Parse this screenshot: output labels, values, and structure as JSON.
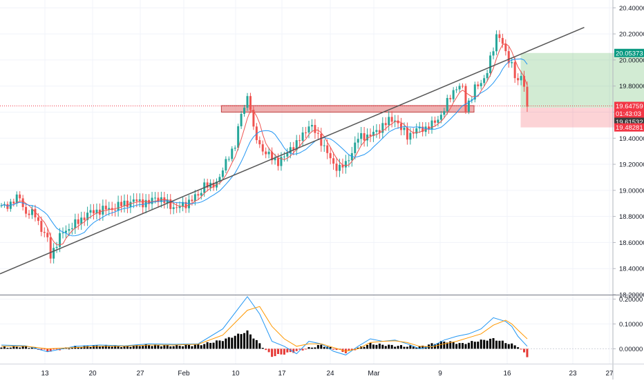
{
  "chart_data": [
    {
      "type": "candlestick",
      "xaxis_ticks": [
        "13",
        "20",
        "27",
        "Feb",
        "10",
        "17",
        "24",
        "Mar",
        "9",
        "16",
        "23",
        "27"
      ],
      "yaxis_ticks": [
        "20.40000",
        "20.20000",
        "20.00000",
        "19.80000",
        "19.60000",
        "19.40000",
        "19.20000",
        "19.00000",
        "18.80000",
        "18.60000",
        "18.40000",
        "18.20000"
      ],
      "ylim": [
        18.2,
        20.46
      ],
      "grid": true,
      "colors": {
        "up": "#26a69a",
        "down": "#ef5350",
        "fast_ma": "#ef5350",
        "slow_ma": "#2196f3"
      },
      "price_labels": [
        {
          "text": "20.05373",
          "value": 20.05373,
          "color": "#089981",
          "role": "take-profit"
        },
        {
          "text": "19.64759",
          "value": 19.64759,
          "color": "#f23645",
          "role": "last-price"
        },
        {
          "text": "01:43:03",
          "value": 19.61,
          "color": "#f23645",
          "role": "bar-countdown"
        },
        {
          "text": "19.61532",
          "value": 19.61532,
          "color": "#3d3d3d",
          "role": "current"
        },
        {
          "text": "19.48281",
          "value": 19.48281,
          "color": "#f23645",
          "role": "stop-loss"
        }
      ],
      "price_anchors": [
        [
          0,
          18.87
        ],
        [
          3,
          18.9
        ],
        [
          6,
          18.95
        ],
        [
          8,
          18.82
        ],
        [
          11,
          18.82
        ],
        [
          13,
          18.7
        ],
        [
          15,
          18.62
        ],
        [
          16,
          18.5
        ],
        [
          17,
          18.55
        ],
        [
          20,
          18.68
        ],
        [
          24,
          18.74
        ],
        [
          28,
          18.82
        ],
        [
          32,
          18.85
        ],
        [
          36,
          18.86
        ],
        [
          40,
          18.9
        ],
        [
          44,
          18.92
        ],
        [
          48,
          18.9
        ],
        [
          50,
          18.95
        ],
        [
          54,
          18.9
        ],
        [
          57,
          18.86
        ],
        [
          60,
          18.9
        ],
        [
          64,
          18.96
        ],
        [
          66,
          19.05
        ],
        [
          68,
          19.02
        ],
        [
          70,
          19.07
        ],
        [
          72,
          19.15
        ],
        [
          74,
          19.27
        ],
        [
          76,
          19.35
        ],
        [
          78,
          19.58
        ],
        [
          80,
          19.72
        ],
        [
          81,
          19.64
        ],
        [
          82,
          19.45
        ],
        [
          84,
          19.35
        ],
        [
          86,
          19.28
        ],
        [
          88,
          19.25
        ],
        [
          90,
          19.22
        ],
        [
          92,
          19.25
        ],
        [
          94,
          19.33
        ],
        [
          96,
          19.35
        ],
        [
          98,
          19.43
        ],
        [
          100,
          19.5
        ],
        [
          102,
          19.45
        ],
        [
          104,
          19.38
        ],
        [
          106,
          19.28
        ],
        [
          108,
          19.2
        ],
        [
          110,
          19.17
        ],
        [
          112,
          19.2
        ],
        [
          114,
          19.3
        ],
        [
          116,
          19.4
        ],
        [
          118,
          19.42
        ],
        [
          120,
          19.42
        ],
        [
          122,
          19.45
        ],
        [
          124,
          19.5
        ],
        [
          126,
          19.53
        ],
        [
          128,
          19.55
        ],
        [
          130,
          19.47
        ],
        [
          132,
          19.42
        ],
        [
          134,
          19.45
        ],
        [
          136,
          19.47
        ],
        [
          138,
          19.48
        ],
        [
          140,
          19.5
        ],
        [
          142,
          19.55
        ],
        [
          144,
          19.62
        ],
        [
          146,
          19.72
        ],
        [
          148,
          19.8
        ],
        [
          150,
          19.78
        ],
        [
          151,
          19.62
        ],
        [
          152,
          19.68
        ],
        [
          154,
          19.78
        ],
        [
          156,
          19.82
        ],
        [
          158,
          19.92
        ],
        [
          160,
          20.08
        ],
        [
          161,
          20.18
        ],
        [
          162,
          20.2
        ],
        [
          163,
          20.12
        ],
        [
          164,
          20.05
        ],
        [
          165,
          19.98
        ],
        [
          166,
          19.97
        ],
        [
          167,
          19.9
        ],
        [
          168,
          19.82
        ],
        [
          169,
          19.88
        ],
        [
          170,
          19.78
        ],
        [
          171,
          19.65
        ]
      ],
      "series": [
        {
          "type": "bar",
          "name": "",
          "x": [
            0,
            8,
            15,
            24,
            32,
            40,
            48,
            56,
            64,
            72,
            80,
            88,
            96,
            104,
            112,
            120,
            128,
            136,
            144,
            150,
            154,
            160,
            164,
            168,
            171
          ],
          "values": [
            0.005,
            0.01,
            -0.01,
            0.008,
            0.012,
            0.01,
            0.015,
            0.012,
            0.015,
            0.035,
            0.07,
            -0.03,
            -0.01,
            0.015,
            -0.015,
            0.02,
            0.012,
            0.008,
            0.03,
            0.02,
            0.03,
            0.04,
            0.025,
            0.01,
            -0.03
          ]
        },
        {
          "type": "line",
          "name": "",
          "x": [
            0,
            8,
            15,
            24,
            32,
            40,
            48,
            56,
            64,
            72,
            80,
            84,
            88,
            92,
            96,
            100,
            104,
            108,
            112,
            116,
            120,
            124,
            128,
            132,
            136,
            140,
            144,
            148,
            152,
            156,
            160,
            164,
            166,
            168,
            171
          ],
          "values": [
            0.015,
            0.012,
            -0.012,
            0.01,
            0.015,
            0.012,
            0.02,
            0.018,
            0.02,
            0.08,
            0.21,
            0.14,
            0.03,
            0.01,
            -0.02,
            0.03,
            0.02,
            -0.01,
            -0.025,
            0.01,
            0.04,
            0.03,
            0.035,
            0.02,
            0.0,
            0.01,
            0.035,
            0.05,
            0.06,
            0.08,
            0.125,
            0.11,
            0.09,
            0.05,
            0.01
          ]
        },
        {
          "type": "line",
          "name": "",
          "x": [
            0,
            8,
            15,
            24,
            32,
            40,
            48,
            56,
            64,
            72,
            80,
            84,
            88,
            92,
            96,
            100,
            104,
            108,
            112,
            116,
            120,
            124,
            128,
            132,
            136,
            140,
            144,
            148,
            152,
            156,
            160,
            164,
            166,
            168,
            171
          ],
          "values": [
            0.01,
            0.01,
            0.0,
            0.005,
            0.01,
            0.01,
            0.015,
            0.015,
            0.018,
            0.055,
            0.155,
            0.17,
            0.09,
            0.04,
            0.01,
            0.02,
            0.02,
            0.005,
            -0.01,
            0.0,
            0.025,
            0.03,
            0.032,
            0.025,
            0.01,
            0.008,
            0.02,
            0.03,
            0.045,
            0.06,
            0.095,
            0.115,
            0.1,
            0.075,
            0.04
          ]
        }
      ],
      "oscillator_ticks": [
        "0.20000",
        "0.10000",
        "0.00000"
      ],
      "oscillator_ylim": [
        -0.06,
        0.215
      ],
      "drawings": {
        "trendline": [
          [
            0,
            18.36
          ],
          [
            190,
            20.25
          ]
        ],
        "resistance_zone": [
          [
            72,
            19.65
          ],
          [
            153,
            19.6
          ]
        ],
        "long_position": {
          "entry": 19.635,
          "target": 20.05373,
          "stop": 19.48281,
          "from": 170,
          "to": 184
        }
      }
    }
  ]
}
